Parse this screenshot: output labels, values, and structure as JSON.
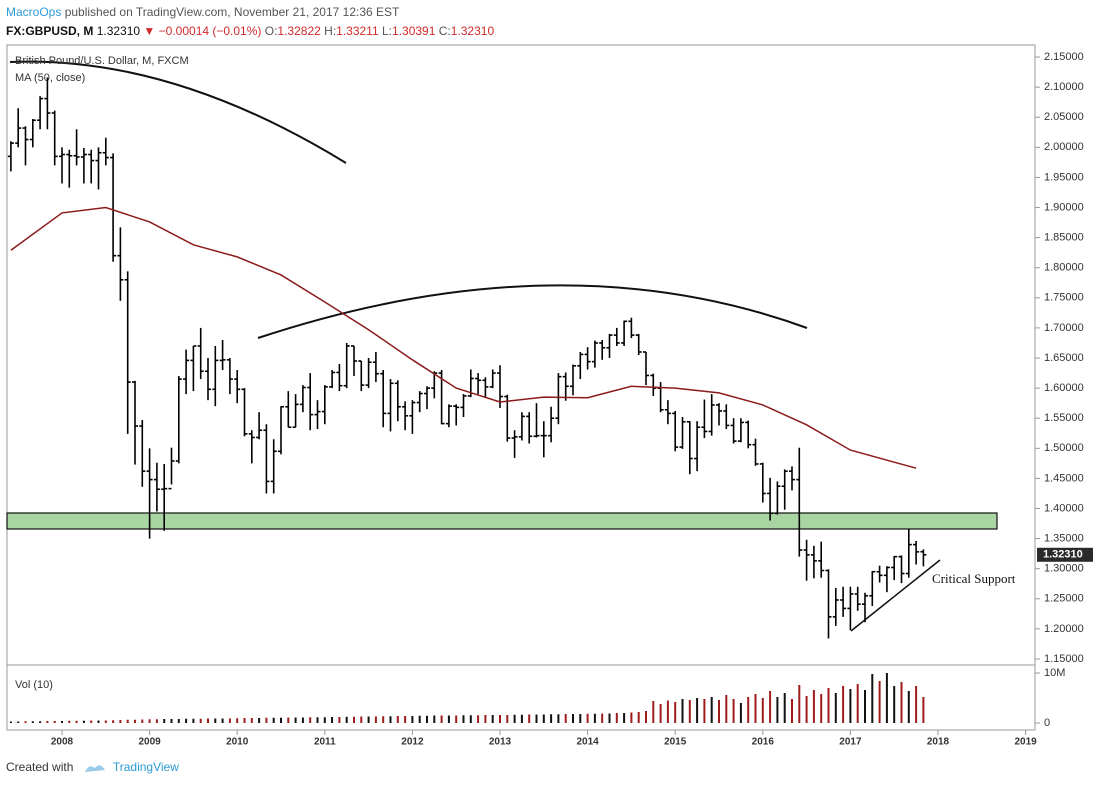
{
  "header": {
    "publisher": "MacroOps",
    "published": "published on TradingView.com, November 21, 2017 12:36 EST",
    "symbol": "FX:GBPUSD, M",
    "last": "1.32310",
    "arrow": "▼",
    "change": "−0.00014 (−0.01%)",
    "ohlc": [
      {
        "label": "O:",
        "value": "1.32822"
      },
      {
        "label": "H:",
        "value": "1.33211"
      },
      {
        "label": "L:",
        "value": "1.30391"
      },
      {
        "label": "C:",
        "value": "1.32310"
      }
    ]
  },
  "footer": {
    "created": "Created with",
    "brand": "TradingView"
  },
  "chart_data": [
    {
      "type": "ohlc",
      "title": "British Pound/U.S. Dollar, M, FXCM",
      "annotation": "Critical Support",
      "color": "#000000",
      "categories": [
        "2007-06",
        "2007-07",
        "2007-08",
        "2007-09",
        "2007-10",
        "2007-11",
        "2007-12",
        "2008-01",
        "2008-02",
        "2008-03",
        "2008-04",
        "2008-05",
        "2008-06",
        "2008-07",
        "2008-08",
        "2008-09",
        "2008-10",
        "2008-11",
        "2008-12",
        "2009-01",
        "2009-02",
        "2009-03",
        "2009-04",
        "2009-05",
        "2009-06",
        "2009-07",
        "2009-08",
        "2009-09",
        "2009-10",
        "2009-11",
        "2009-12",
        "2010-01",
        "2010-02",
        "2010-03",
        "2010-04",
        "2010-05",
        "2010-06",
        "2010-07",
        "2010-08",
        "2010-09",
        "2010-10",
        "2010-11",
        "2010-12",
        "2011-01",
        "2011-02",
        "2011-03",
        "2011-04",
        "2011-05",
        "2011-06",
        "2011-07",
        "2011-08",
        "2011-09",
        "2011-10",
        "2011-11",
        "2011-12",
        "2012-01",
        "2012-02",
        "2012-03",
        "2012-04",
        "2012-05",
        "2012-06",
        "2012-07",
        "2012-08",
        "2012-09",
        "2012-10",
        "2012-11",
        "2012-12",
        "2013-01",
        "2013-02",
        "2013-03",
        "2013-04",
        "2013-05",
        "2013-06",
        "2013-07",
        "2013-08",
        "2013-09",
        "2013-10",
        "2013-11",
        "2013-12",
        "2014-01",
        "2014-02",
        "2014-03",
        "2014-04",
        "2014-05",
        "2014-06",
        "2014-07",
        "2014-08",
        "2014-09",
        "2014-10",
        "2014-11",
        "2014-12",
        "2015-01",
        "2015-02",
        "2015-03",
        "2015-04",
        "2015-05",
        "2015-06",
        "2015-07",
        "2015-08",
        "2015-09",
        "2015-10",
        "2015-11",
        "2015-12",
        "2016-01",
        "2016-02",
        "2016-03",
        "2016-04",
        "2016-05",
        "2016-06",
        "2016-07",
        "2016-08",
        "2016-09",
        "2016-10",
        "2016-11",
        "2016-12",
        "2017-01",
        "2017-02",
        "2017-03",
        "2017-04",
        "2017-05",
        "2017-06",
        "2017-07",
        "2017-08",
        "2017-09",
        "2017-10",
        "2017-11"
      ],
      "open": [
        1.985,
        2.007,
        2.032,
        2.013,
        2.045,
        2.081,
        2.057,
        1.985,
        1.988,
        1.986,
        1.984,
        1.988,
        1.978,
        1.991,
        1.983,
        1.82,
        1.78,
        1.61,
        1.537,
        1.462,
        1.448,
        1.432,
        1.433,
        1.479,
        1.615,
        1.646,
        1.67,
        1.628,
        1.598,
        1.646,
        1.647,
        1.615,
        1.598,
        1.524,
        1.518,
        1.53,
        1.445,
        1.495,
        1.569,
        1.535,
        1.573,
        1.601,
        1.556,
        1.561,
        1.602,
        1.626,
        1.604,
        1.67,
        1.645,
        1.605,
        1.643,
        1.624,
        1.558,
        1.608,
        1.569,
        1.554,
        1.576,
        1.591,
        1.6,
        1.625,
        1.541,
        1.57,
        1.568,
        1.587,
        1.616,
        1.613,
        1.602,
        1.625,
        1.586,
        1.517,
        1.519,
        1.553,
        1.52,
        1.521,
        1.521,
        1.55,
        1.619,
        1.603,
        1.637,
        1.656,
        1.644,
        1.675,
        1.667,
        1.688,
        1.675,
        1.711,
        1.688,
        1.66,
        1.621,
        1.6,
        1.564,
        1.558,
        1.502,
        1.544,
        1.483,
        1.535,
        1.528,
        1.572,
        1.562,
        1.538,
        1.512,
        1.543,
        1.506,
        1.474,
        1.425,
        1.392,
        1.437,
        1.462,
        1.448,
        1.331,
        1.323,
        1.313,
        1.297,
        1.22,
        1.248,
        1.234,
        1.258,
        1.241,
        1.255,
        1.295,
        1.289,
        1.302,
        1.32,
        1.292,
        1.34,
        1.32822
      ],
      "high": [
        2.01,
        2.065,
        2.035,
        2.047,
        2.085,
        2.116,
        2.061,
        2.0,
        1.996,
        2.03,
        1.999,
        1.996,
        2.0,
        2.016,
        1.99,
        1.867,
        1.794,
        1.612,
        1.547,
        1.5,
        1.476,
        1.474,
        1.501,
        1.62,
        1.664,
        1.67,
        1.7,
        1.65,
        1.67,
        1.68,
        1.65,
        1.63,
        1.6,
        1.53,
        1.56,
        1.54,
        1.515,
        1.57,
        1.595,
        1.59,
        1.605,
        1.625,
        1.58,
        1.605,
        1.63,
        1.64,
        1.675,
        1.67,
        1.645,
        1.65,
        1.66,
        1.63,
        1.615,
        1.613,
        1.578,
        1.58,
        1.595,
        1.603,
        1.628,
        1.63,
        1.573,
        1.573,
        1.59,
        1.631,
        1.625,
        1.618,
        1.631,
        1.638,
        1.589,
        1.53,
        1.56,
        1.56,
        1.575,
        1.545,
        1.569,
        1.625,
        1.626,
        1.639,
        1.66,
        1.668,
        1.679,
        1.68,
        1.69,
        1.7,
        1.712,
        1.717,
        1.69,
        1.66,
        1.624,
        1.61,
        1.58,
        1.562,
        1.552,
        1.545,
        1.545,
        1.581,
        1.59,
        1.575,
        1.573,
        1.55,
        1.55,
        1.546,
        1.516,
        1.476,
        1.451,
        1.445,
        1.465,
        1.47,
        1.501,
        1.348,
        1.338,
        1.345,
        1.299,
        1.268,
        1.27,
        1.27,
        1.27,
        1.26,
        1.296,
        1.305,
        1.304,
        1.321,
        1.322,
        1.366,
        1.346,
        1.33211
      ],
      "low": [
        1.96,
        2.0,
        1.97,
        2.0,
        2.03,
        2.03,
        1.97,
        1.94,
        1.933,
        1.97,
        1.94,
        1.94,
        1.93,
        1.97,
        1.81,
        1.745,
        1.524,
        1.473,
        1.436,
        1.35,
        1.395,
        1.363,
        1.44,
        1.475,
        1.59,
        1.595,
        1.615,
        1.58,
        1.57,
        1.63,
        1.59,
        1.575,
        1.52,
        1.475,
        1.515,
        1.425,
        1.425,
        1.49,
        1.535,
        1.535,
        1.56,
        1.53,
        1.532,
        1.54,
        1.6,
        1.595,
        1.6,
        1.62,
        1.595,
        1.6,
        1.61,
        1.535,
        1.528,
        1.545,
        1.53,
        1.524,
        1.56,
        1.565,
        1.583,
        1.54,
        1.535,
        1.538,
        1.552,
        1.585,
        1.59,
        1.585,
        1.6,
        1.567,
        1.511,
        1.484,
        1.513,
        1.508,
        1.518,
        1.485,
        1.51,
        1.54,
        1.579,
        1.588,
        1.615,
        1.631,
        1.634,
        1.647,
        1.65,
        1.67,
        1.67,
        1.683,
        1.655,
        1.605,
        1.587,
        1.56,
        1.54,
        1.495,
        1.499,
        1.457,
        1.462,
        1.517,
        1.521,
        1.538,
        1.532,
        1.508,
        1.51,
        1.5,
        1.471,
        1.41,
        1.38,
        1.39,
        1.398,
        1.43,
        1.32,
        1.28,
        1.284,
        1.285,
        1.184,
        1.205,
        1.22,
        1.198,
        1.23,
        1.211,
        1.238,
        1.277,
        1.261,
        1.281,
        1.276,
        1.285,
        1.307,
        1.30391
      ],
      "close": [
        2.007,
        2.032,
        2.013,
        2.045,
        2.081,
        2.057,
        1.985,
        1.988,
        1.986,
        1.984,
        1.988,
        1.978,
        1.991,
        1.983,
        1.82,
        1.78,
        1.61,
        1.537,
        1.462,
        1.448,
        1.432,
        1.433,
        1.479,
        1.615,
        1.646,
        1.67,
        1.628,
        1.598,
        1.646,
        1.647,
        1.615,
        1.598,
        1.524,
        1.518,
        1.53,
        1.445,
        1.495,
        1.569,
        1.535,
        1.573,
        1.601,
        1.556,
        1.561,
        1.602,
        1.626,
        1.604,
        1.67,
        1.645,
        1.605,
        1.643,
        1.624,
        1.558,
        1.608,
        1.569,
        1.554,
        1.576,
        1.591,
        1.6,
        1.625,
        1.541,
        1.57,
        1.568,
        1.587,
        1.616,
        1.613,
        1.602,
        1.625,
        1.586,
        1.517,
        1.519,
        1.553,
        1.52,
        1.521,
        1.521,
        1.55,
        1.619,
        1.603,
        1.637,
        1.656,
        1.644,
        1.675,
        1.667,
        1.688,
        1.675,
        1.711,
        1.688,
        1.66,
        1.621,
        1.6,
        1.564,
        1.558,
        1.502,
        1.544,
        1.483,
        1.535,
        1.528,
        1.572,
        1.562,
        1.538,
        1.512,
        1.543,
        1.506,
        1.474,
        1.425,
        1.392,
        1.437,
        1.462,
        1.448,
        1.331,
        1.323,
        1.313,
        1.297,
        1.22,
        1.248,
        1.234,
        1.258,
        1.241,
        1.255,
        1.295,
        1.289,
        1.302,
        1.32,
        1.292,
        1.34,
        1.328,
        1.3231
      ],
      "ma": {
        "name": "MA (50, close)",
        "color": "#8b1a1a",
        "x": [
          "2007-06",
          "2008-01",
          "2008-07",
          "2009-01",
          "2009-07",
          "2010-01",
          "2010-07",
          "2011-01",
          "2011-07",
          "2012-01",
          "2012-07",
          "2013-01",
          "2013-07",
          "2014-01",
          "2014-07",
          "2015-01",
          "2015-07",
          "2016-01",
          "2016-07",
          "2017-01",
          "2017-10"
        ],
        "values": [
          1.829,
          1.891,
          1.9,
          1.876,
          1.838,
          1.818,
          1.788,
          1.743,
          1.697,
          1.647,
          1.6,
          1.577,
          1.585,
          1.584,
          1.603,
          1.6,
          1.592,
          1.572,
          1.539,
          1.497,
          1.467
        ]
      },
      "ylim": [
        1.14,
        2.17
      ],
      "yticks": [
        {
          "value": 2.15,
          "label": "2.15000"
        },
        {
          "value": 2.1,
          "label": "2.10000"
        },
        {
          "value": 2.05,
          "label": "2.05000"
        },
        {
          "value": 2.0,
          "label": "2.00000"
        },
        {
          "value": 1.95,
          "label": "1.95000"
        },
        {
          "value": 1.9,
          "label": "1.90000"
        },
        {
          "value": 1.85,
          "label": "1.85000"
        },
        {
          "value": 1.8,
          "label": "1.80000"
        },
        {
          "value": 1.75,
          "label": "1.75000"
        },
        {
          "value": 1.7,
          "label": "1.70000"
        },
        {
          "value": 1.65,
          "label": "1.65000"
        },
        {
          "value": 1.6,
          "label": "1.60000"
        },
        {
          "value": 1.55,
          "label": "1.55000"
        },
        {
          "value": 1.5,
          "label": "1.50000"
        },
        {
          "value": 1.45,
          "label": "1.45000"
        },
        {
          "value": 1.4,
          "label": "1.40000"
        },
        {
          "value": 1.35,
          "label": "1.35000"
        },
        {
          "value": 1.3,
          "label": "1.30000"
        },
        {
          "value": 1.25,
          "label": "1.25000"
        },
        {
          "value": 1.2,
          "label": "1.20000"
        },
        {
          "value": 1.15,
          "label": "1.15000"
        }
      ],
      "xticks": [
        {
          "value": "2008-01",
          "label": "2008"
        },
        {
          "value": "2009-01",
          "label": "2009"
        },
        {
          "value": "2010-01",
          "label": "2010"
        },
        {
          "value": "2011-01",
          "label": "2011"
        },
        {
          "value": "2012-01",
          "label": "2012"
        },
        {
          "value": "2013-01",
          "label": "2013"
        },
        {
          "value": "2014-01",
          "label": "2014"
        },
        {
          "value": "2015-01",
          "label": "2015"
        },
        {
          "value": "2016-01",
          "label": "2016"
        },
        {
          "value": "2017-01",
          "label": "2017"
        },
        {
          "value": "2018-01",
          "label": "2018"
        },
        {
          "value": "2019-01",
          "label": "2019"
        }
      ]
    },
    {
      "type": "volume",
      "title": "Vol (10)",
      "colors": {
        "up": "#111111",
        "down": "#9e1b1b"
      },
      "values": [
        300000,
        300000,
        350000,
        350000,
        350000,
        400000,
        400000,
        400000,
        450000,
        450000,
        450000,
        500000,
        500000,
        500000,
        550000,
        600000,
        650000,
        650000,
        700000,
        750000,
        750000,
        800000,
        800000,
        800000,
        850000,
        850000,
        850000,
        900000,
        900000,
        900000,
        900000,
        950000,
        1000000,
        1000000,
        1000000,
        1050000,
        1050000,
        1050000,
        1100000,
        1100000,
        1100000,
        1150000,
        1150000,
        1150000,
        1200000,
        1200000,
        1250000,
        1250000,
        1300000,
        1300000,
        1300000,
        1350000,
        1350000,
        1400000,
        1400000,
        1400000,
        1450000,
        1450000,
        1500000,
        1500000,
        1500000,
        1500000,
        1550000,
        1550000,
        1550000,
        1600000,
        1600000,
        1600000,
        1600000,
        1650000,
        1650000,
        1700000,
        1700000,
        1700000,
        1750000,
        1750000,
        1800000,
        1800000,
        1800000,
        1850000,
        1850000,
        1900000,
        1900000,
        2000000,
        2000000,
        2100000,
        2200000,
        2400000,
        4400000,
        3800000,
        4500000,
        4200000,
        4800000,
        4600000,
        5000000,
        4800000,
        5200000,
        4600000,
        5600000,
        4800000,
        4000000,
        5200000,
        5800000,
        5000000,
        6400000,
        5200000,
        6000000,
        4800000,
        7600000,
        5400000,
        6600000,
        5800000,
        7000000,
        6000000,
        7400000,
        6800000,
        7800000,
        6600000,
        9800000,
        8400000,
        10000000,
        7400000,
        8200000,
        6400000,
        7400000,
        5200000
      ],
      "ylim": [
        0,
        10800000
      ],
      "yticks": [
        {
          "value": 10000000,
          "label": "10M"
        },
        0
      ]
    }
  ]
}
